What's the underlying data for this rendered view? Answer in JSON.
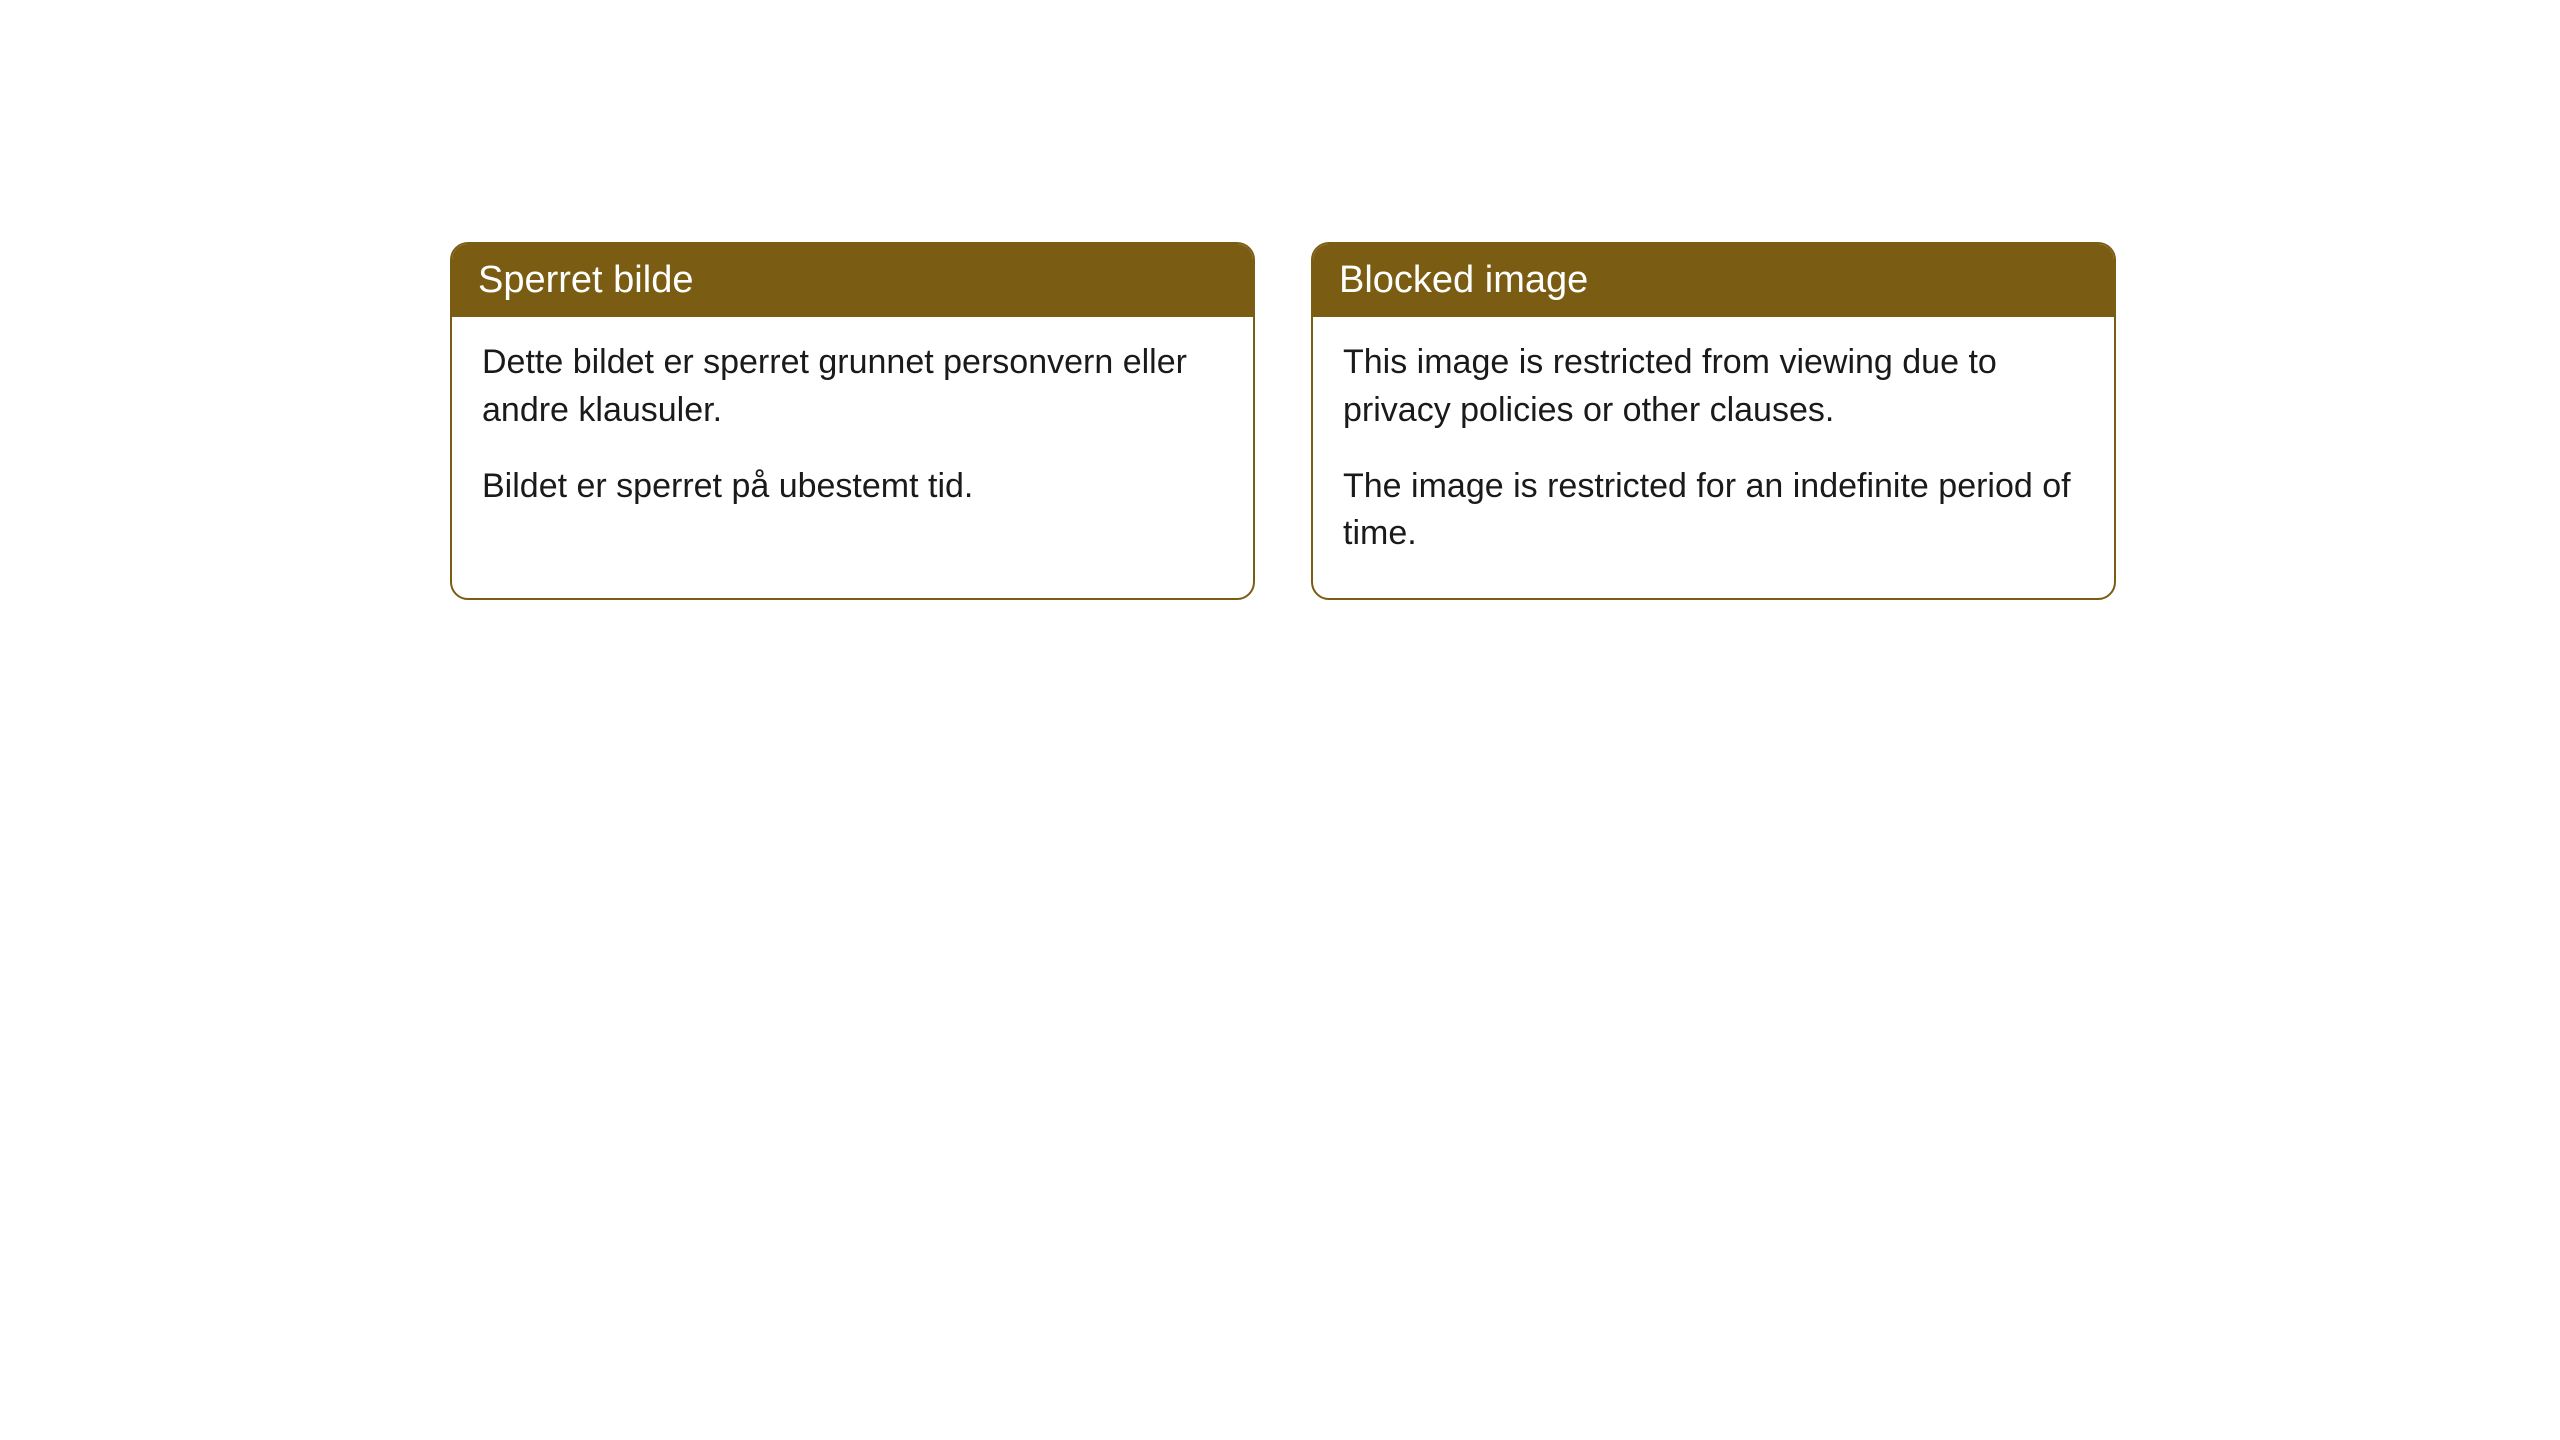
{
  "cards": [
    {
      "title": "Sperret bilde",
      "paragraph1": "Dette bildet er sperret grunnet personvern eller andre klausuler.",
      "paragraph2": "Bildet er sperret på ubestemt tid."
    },
    {
      "title": "Blocked image",
      "paragraph1": "This image is restricted from viewing due to privacy policies or other clauses.",
      "paragraph2": "The image is restricted for an indefinite period of time."
    }
  ],
  "styling": {
    "header_background": "#7a5d12",
    "header_text_color": "#ffffff",
    "border_color": "#7a5d12",
    "body_background": "#ffffff",
    "body_text_color": "#1a1a1a",
    "border_radius": 18,
    "title_fontsize": 38,
    "body_fontsize": 34
  }
}
